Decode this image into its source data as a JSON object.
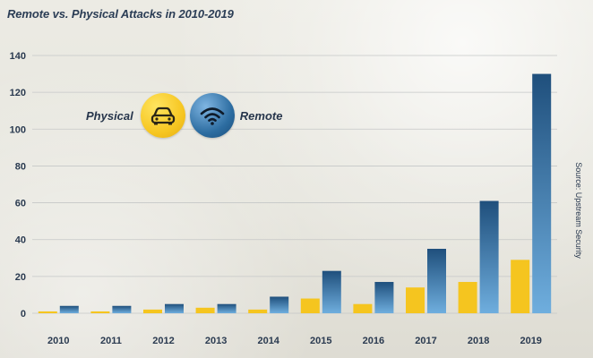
{
  "colors": {
    "physical": "#f5c51f",
    "remote_top": "#1f4f7c",
    "remote_bottom": "#6faede",
    "grid": "#c5c7c7"
  },
  "chart_data": {
    "type": "bar",
    "title": "Remote vs. Physical Attacks in 2010-2019",
    "categories": [
      "2010",
      "2011",
      "2012",
      "2013",
      "2014",
      "2015",
      "2016",
      "2017",
      "2018",
      "2019"
    ],
    "series": [
      {
        "name": "Physical",
        "color": "#f5c51f",
        "icon": "car-icon",
        "values": [
          1,
          1,
          2,
          3,
          2,
          8,
          5,
          14,
          17,
          29
        ]
      },
      {
        "name": "Remote",
        "color": "#2c6ca0",
        "icon": "wifi-icon",
        "values": [
          4,
          4,
          5,
          5,
          9,
          23,
          17,
          35,
          61,
          130
        ]
      }
    ],
    "yticks": [
      0,
      20,
      40,
      60,
      80,
      100,
      120,
      140
    ],
    "ylim": [
      0,
      140
    ],
    "grid": true,
    "legend_position": "upper-left",
    "source": "Source: Upstream Security"
  }
}
